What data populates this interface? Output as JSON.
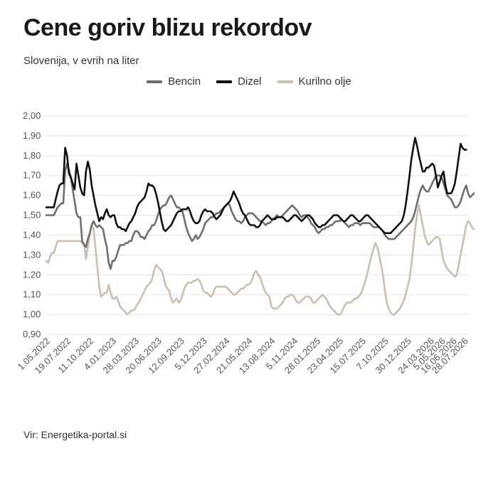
{
  "title": "Cene goriv blizu rekordov",
  "subtitle": "Slovenija, v evrih na liter",
  "source": "Vir: Energetika-portal.si",
  "chart_data": {
    "type": "line",
    "ylim": [
      0.9,
      2.0
    ],
    "y_ticks": [
      "0,90",
      "1,00",
      "1,10",
      "1,20",
      "1,30",
      "1,40",
      "1,50",
      "1,60",
      "1,70",
      "1,80",
      "1,90",
      "2,00"
    ],
    "y_tick_values": [
      0.9,
      1.0,
      1.1,
      1.2,
      1.3,
      1.4,
      1.5,
      1.6,
      1.7,
      1.8,
      1.9,
      2.0
    ],
    "x_tick_labels": [
      "1.05.2022",
      "19.07.2022",
      "11.10.2022",
      "4.01.2023",
      "28.03.2023",
      "20.06.2023",
      "12.09.2023",
      "5.12.2023",
      "27.02.2024",
      "21.05.2024",
      "13.08.2024",
      "5.11.2024",
      "28.01.2025",
      "23.04.2025",
      "15.07.2025",
      "7.10.2025",
      "30.12.2025",
      "24.03.2026",
      "5.05.2026",
      "16.06.2026",
      "28.07.2026"
    ],
    "x_tick_positions": [
      0,
      11,
      23,
      35,
      47,
      59,
      71,
      83,
      95,
      107,
      119,
      131,
      143,
      155,
      167,
      179,
      191,
      203,
      209,
      215,
      221
    ],
    "x_max": 223,
    "grid": true,
    "legend_position": "top-center",
    "series": [
      {
        "name": "Bencin",
        "color": "#6f6f6f",
        "values": [
          1.5,
          1.5,
          1.5,
          1.5,
          1.5,
          1.52,
          1.54,
          1.55,
          1.56,
          1.56,
          1.72,
          1.76,
          1.73,
          1.69,
          1.63,
          1.57,
          1.51,
          1.49,
          1.49,
          1.37,
          1.35,
          1.34,
          1.38,
          1.41,
          1.45,
          1.47,
          1.45,
          1.44,
          1.45,
          1.44,
          1.43,
          1.38,
          1.34,
          1.26,
          1.23,
          1.27,
          1.27,
          1.29,
          1.32,
          1.35,
          1.35,
          1.35,
          1.36,
          1.36,
          1.37,
          1.37,
          1.4,
          1.42,
          1.42,
          1.41,
          1.39,
          1.39,
          1.38,
          1.4,
          1.42,
          1.43,
          1.45,
          1.45,
          1.47,
          1.5,
          1.53,
          1.54,
          1.55,
          1.55,
          1.57,
          1.59,
          1.6,
          1.58,
          1.56,
          1.54,
          1.54,
          1.53,
          1.52,
          1.48,
          1.44,
          1.41,
          1.39,
          1.37,
          1.38,
          1.4,
          1.38,
          1.39,
          1.41,
          1.43,
          1.46,
          1.47,
          1.48,
          1.49,
          1.49,
          1.5,
          1.51,
          1.51,
          1.52,
          1.53,
          1.54,
          1.55,
          1.56,
          1.55,
          1.52,
          1.5,
          1.48,
          1.47,
          1.47,
          1.46,
          1.47,
          1.49,
          1.5,
          1.51,
          1.51,
          1.51,
          1.5,
          1.49,
          1.48,
          1.47,
          1.47,
          1.46,
          1.45,
          1.46,
          1.46,
          1.47,
          1.48,
          1.49,
          1.5,
          1.49,
          1.49,
          1.5,
          1.51,
          1.52,
          1.53,
          1.54,
          1.55,
          1.54,
          1.53,
          1.52,
          1.5,
          1.49,
          1.5,
          1.5,
          1.49,
          1.48,
          1.46,
          1.45,
          1.44,
          1.42,
          1.41,
          1.42,
          1.43,
          1.43,
          1.44,
          1.44,
          1.45,
          1.45,
          1.46,
          1.47,
          1.47,
          1.47,
          1.48,
          1.47,
          1.46,
          1.45,
          1.44,
          1.45,
          1.45,
          1.46,
          1.46,
          1.46,
          1.45,
          1.46,
          1.46,
          1.46,
          1.46,
          1.46,
          1.45,
          1.44,
          1.44,
          1.44,
          1.44,
          1.43,
          1.42,
          1.4,
          1.39,
          1.38,
          1.38,
          1.38,
          1.38,
          1.39,
          1.4,
          1.41,
          1.42,
          1.43,
          1.44,
          1.45,
          1.46,
          1.47,
          1.49,
          1.52,
          1.56,
          1.6,
          1.63,
          1.65,
          1.63,
          1.62,
          1.62,
          1.64,
          1.66,
          1.68,
          1.7,
          1.7,
          1.7,
          1.69,
          1.66,
          1.63,
          1.6,
          1.59,
          1.58,
          1.56,
          1.54,
          1.54,
          1.55,
          1.57,
          1.6,
          1.63,
          1.65,
          1.61,
          1.59,
          1.6,
          1.61
        ]
      },
      {
        "name": "Dizel",
        "color": "#111111",
        "values": [
          1.54,
          1.54,
          1.54,
          1.54,
          1.54,
          1.58,
          1.62,
          1.65,
          1.66,
          1.66,
          1.84,
          1.8,
          1.71,
          1.69,
          1.66,
          1.63,
          1.76,
          1.7,
          1.64,
          1.61,
          1.6,
          1.72,
          1.77,
          1.73,
          1.65,
          1.6,
          1.55,
          1.51,
          1.47,
          1.49,
          1.48,
          1.51,
          1.53,
          1.5,
          1.49,
          1.5,
          1.5,
          1.46,
          1.44,
          1.44,
          1.43,
          1.43,
          1.42,
          1.44,
          1.46,
          1.47,
          1.49,
          1.51,
          1.54,
          1.56,
          1.57,
          1.58,
          1.59,
          1.62,
          1.66,
          1.65,
          1.65,
          1.64,
          1.61,
          1.57,
          1.52,
          1.47,
          1.43,
          1.42,
          1.43,
          1.44,
          1.45,
          1.47,
          1.49,
          1.51,
          1.52,
          1.52,
          1.53,
          1.53,
          1.53,
          1.54,
          1.52,
          1.49,
          1.47,
          1.46,
          1.46,
          1.47,
          1.5,
          1.52,
          1.53,
          1.52,
          1.52,
          1.52,
          1.51,
          1.49,
          1.48,
          1.49,
          1.5,
          1.52,
          1.54,
          1.55,
          1.56,
          1.57,
          1.59,
          1.62,
          1.6,
          1.58,
          1.56,
          1.53,
          1.51,
          1.5,
          1.48,
          1.46,
          1.45,
          1.45,
          1.45,
          1.44,
          1.44,
          1.45,
          1.47,
          1.48,
          1.49,
          1.5,
          1.49,
          1.48,
          1.48,
          1.48,
          1.49,
          1.49,
          1.49,
          1.49,
          1.48,
          1.47,
          1.47,
          1.48,
          1.49,
          1.5,
          1.5,
          1.49,
          1.48,
          1.47,
          1.48,
          1.49,
          1.5,
          1.5,
          1.49,
          1.48,
          1.46,
          1.45,
          1.44,
          1.44,
          1.45,
          1.45,
          1.46,
          1.47,
          1.48,
          1.49,
          1.5,
          1.5,
          1.5,
          1.49,
          1.48,
          1.47,
          1.47,
          1.48,
          1.49,
          1.5,
          1.5,
          1.49,
          1.48,
          1.47,
          1.47,
          1.48,
          1.49,
          1.5,
          1.5,
          1.49,
          1.48,
          1.47,
          1.46,
          1.45,
          1.44,
          1.43,
          1.42,
          1.41,
          1.41,
          1.41,
          1.41,
          1.42,
          1.43,
          1.44,
          1.45,
          1.46,
          1.47,
          1.5,
          1.55,
          1.62,
          1.7,
          1.78,
          1.84,
          1.89,
          1.85,
          1.8,
          1.76,
          1.72,
          1.72,
          1.74,
          1.74,
          1.75,
          1.76,
          1.75,
          1.7,
          1.64,
          1.67,
          1.7,
          1.72,
          1.65,
          1.61,
          1.61,
          1.61,
          1.63,
          1.66,
          1.72,
          1.79,
          1.86,
          1.84,
          1.83,
          1.83
        ]
      },
      {
        "name": "Kurilno olje",
        "color": "#cbbfb0",
        "values": [
          1.27,
          1.26,
          1.29,
          1.31,
          1.31,
          1.34,
          1.37,
          1.37,
          1.37,
          1.37,
          1.37,
          1.37,
          1.37,
          1.37,
          1.37,
          1.37,
          1.37,
          1.37,
          1.37,
          1.36,
          1.36,
          1.28,
          1.34,
          1.4,
          1.45,
          1.43,
          1.34,
          1.24,
          1.14,
          1.09,
          1.1,
          1.11,
          1.11,
          1.15,
          1.11,
          1.08,
          1.08,
          1.09,
          1.07,
          1.04,
          1.03,
          1.02,
          1.01,
          1.0,
          1.01,
          1.02,
          1.02,
          1.03,
          1.05,
          1.06,
          1.08,
          1.1,
          1.12,
          1.14,
          1.15,
          1.16,
          1.18,
          1.22,
          1.25,
          1.24,
          1.23,
          1.22,
          1.19,
          1.15,
          1.13,
          1.12,
          1.08,
          1.06,
          1.07,
          1.08,
          1.06,
          1.07,
          1.1,
          1.13,
          1.15,
          1.16,
          1.16,
          1.16,
          1.17,
          1.17,
          1.18,
          1.17,
          1.15,
          1.12,
          1.11,
          1.11,
          1.1,
          1.09,
          1.1,
          1.13,
          1.14,
          1.14,
          1.14,
          1.14,
          1.14,
          1.14,
          1.13,
          1.12,
          1.11,
          1.1,
          1.1,
          1.11,
          1.12,
          1.13,
          1.13,
          1.14,
          1.15,
          1.15,
          1.16,
          1.18,
          1.21,
          1.22,
          1.2,
          1.19,
          1.16,
          1.13,
          1.11,
          1.1,
          1.09,
          1.04,
          1.03,
          1.03,
          1.03,
          1.04,
          1.05,
          1.06,
          1.08,
          1.09,
          1.09,
          1.1,
          1.1,
          1.09,
          1.07,
          1.06,
          1.06,
          1.07,
          1.08,
          1.09,
          1.09,
          1.09,
          1.08,
          1.06,
          1.06,
          1.07,
          1.08,
          1.09,
          1.1,
          1.09,
          1.08,
          1.06,
          1.04,
          1.03,
          1.02,
          1.01,
          1.0,
          1.0,
          1.01,
          1.03,
          1.05,
          1.06,
          1.06,
          1.06,
          1.07,
          1.08,
          1.08,
          1.09,
          1.1,
          1.12,
          1.15,
          1.18,
          1.22,
          1.26,
          1.3,
          1.33,
          1.36,
          1.34,
          1.3,
          1.25,
          1.2,
          1.12,
          1.06,
          1.03,
          1.01,
          1.0,
          1.0,
          1.01,
          1.02,
          1.03,
          1.05,
          1.07,
          1.1,
          1.14,
          1.18,
          1.25,
          1.34,
          1.43,
          1.5,
          1.55,
          1.5,
          1.45,
          1.4,
          1.37,
          1.35,
          1.36,
          1.37,
          1.38,
          1.39,
          1.39,
          1.38,
          1.32,
          1.27,
          1.25,
          1.23,
          1.22,
          1.21,
          1.2,
          1.19,
          1.2,
          1.25,
          1.3,
          1.35,
          1.4,
          1.45,
          1.47,
          1.46,
          1.44,
          1.43
        ]
      }
    ]
  }
}
